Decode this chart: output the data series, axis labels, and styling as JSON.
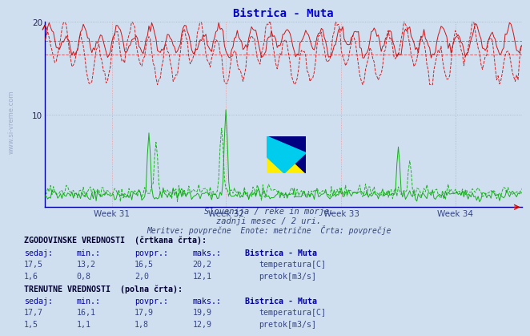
{
  "title": "Bistrica - Muta",
  "bg_color": "#d0dff0",
  "plot_bg_color": "#d0dff0",
  "grid_color": "#e08080",
  "title_color": "#0000cc",
  "title_fontsize": 10,
  "n_points": 336,
  "weeks": [
    "Week 31",
    "Week 32",
    "Week 33",
    "Week 34"
  ],
  "ylim": [
    0,
    20
  ],
  "yticks": [
    10,
    20
  ],
  "temp_color": "#cc0000",
  "flow_color": "#00aa00",
  "temp_hist_mean": 16.5,
  "temp_curr_mean": 17.9,
  "flow_hist_mean": 2.0,
  "flow_curr_mean": 1.8,
  "subtitle1": "Slovenija / reke in morje.",
  "subtitle2": "zadnji mesec / 2 uri.",
  "subtitle3": "Meritve: povprečne  Enote: metrične  Črta: povprečje",
  "table_text_color": "#334488",
  "table_header_color": "#0000aa",
  "table_bold_color": "#000033",
  "watermark_color": "#1a3a6a",
  "hist_vals_temp": [
    "17,5",
    "13,2",
    "16,5",
    "20,2"
  ],
  "hist_vals_flow": [
    "1,6",
    "0,8",
    "2,0",
    "12,1"
  ],
  "curr_vals_temp": [
    "17,7",
    "16,1",
    "17,9",
    "19,9"
  ],
  "curr_vals_flow": [
    "1,5",
    "1,1",
    "1,8",
    "12,9"
  ]
}
